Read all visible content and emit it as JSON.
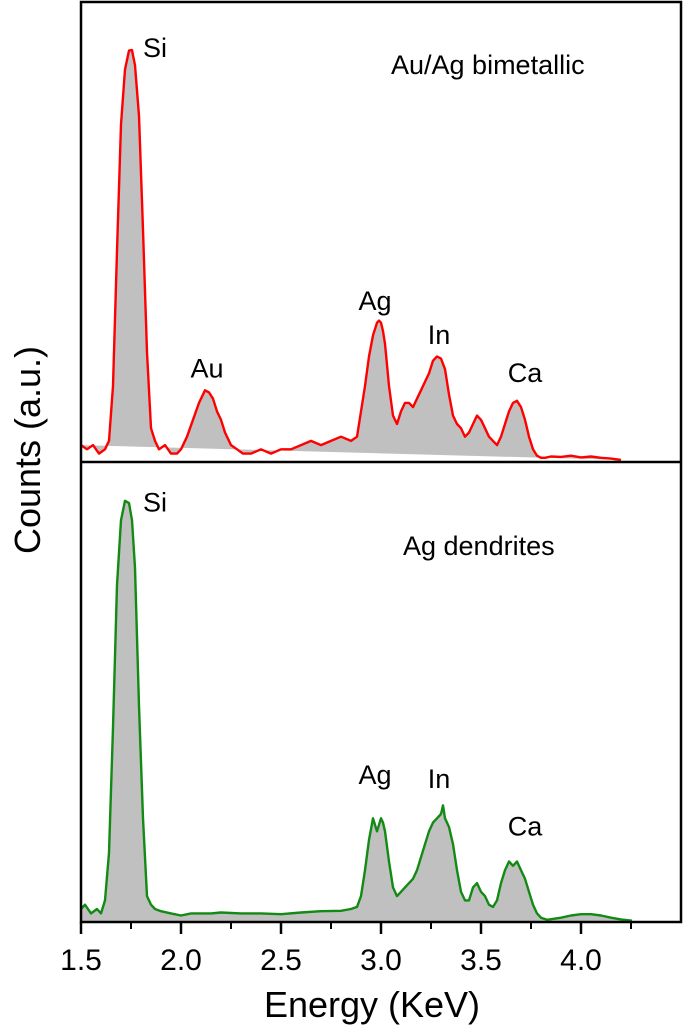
{
  "chart_data": {
    "type": "area",
    "title": "",
    "xlabel": "Energy (KeV)",
    "ylabel": "Counts (a.u.)",
    "xlim": [
      1.5,
      4.255
    ],
    "x_ticks": [
      "1.5",
      "2.0",
      "2.5",
      "3.0",
      "3.5",
      "4.0"
    ],
    "x_tick_values": [
      1.5,
      2.0,
      2.5,
      3.0,
      3.5,
      4.0
    ],
    "x_minor_ticks": [
      1.75,
      2.25,
      2.75,
      3.25,
      3.75,
      4.25
    ],
    "grid": false,
    "legend": "none",
    "fill_color": "#c0c0c0",
    "panels": [
      {
        "name": "Au/Ag bimetallic",
        "line_color": "#ff0000",
        "ylim": [
          0,
          100
        ],
        "peak_labels": [
          {
            "text": "Si",
            "x": 1.87,
            "y": 96
          },
          {
            "text": "Au",
            "x": 2.13,
            "y": 20
          },
          {
            "text": "Ag",
            "x": 2.97,
            "y": 36
          },
          {
            "text": "In",
            "x": 3.29,
            "y": 28
          },
          {
            "text": "Ca",
            "x": 3.72,
            "y": 19
          }
        ],
        "series": {
          "x": [
            1.5,
            1.53,
            1.56,
            1.59,
            1.62,
            1.64,
            1.66,
            1.68,
            1.7,
            1.72,
            1.74,
            1.755,
            1.77,
            1.79,
            1.81,
            1.83,
            1.85,
            1.87,
            1.89,
            1.92,
            1.95,
            1.98,
            2.0,
            2.03,
            2.06,
            2.09,
            2.12,
            2.14,
            2.16,
            2.18,
            2.2,
            2.22,
            2.25,
            2.28,
            2.31,
            2.35,
            2.4,
            2.45,
            2.5,
            2.55,
            2.6,
            2.65,
            2.7,
            2.75,
            2.8,
            2.85,
            2.88,
            2.9,
            2.92,
            2.94,
            2.96,
            2.98,
            2.99,
            3.0,
            3.01,
            3.02,
            3.04,
            3.06,
            3.08,
            3.1,
            3.12,
            3.14,
            3.16,
            3.18,
            3.2,
            3.22,
            3.24,
            3.26,
            3.28,
            3.3,
            3.32,
            3.34,
            3.36,
            3.38,
            3.4,
            3.42,
            3.44,
            3.46,
            3.48,
            3.5,
            3.52,
            3.54,
            3.56,
            3.58,
            3.6,
            3.62,
            3.64,
            3.66,
            3.68,
            3.7,
            3.72,
            3.74,
            3.76,
            3.78,
            3.8,
            3.82,
            3.85,
            3.9,
            3.95,
            4.0,
            4.05,
            4.1,
            4.15,
            4.2,
            4.255
          ],
          "values": [
            4,
            3,
            4,
            2,
            3,
            5,
            18,
            50,
            80,
            93,
            97.5,
            97.6,
            94,
            82,
            55,
            26,
            8,
            5,
            3,
            4,
            2,
            2,
            3,
            6,
            10,
            14,
            17,
            16.5,
            15,
            12,
            10,
            7,
            4,
            3,
            2,
            2,
            3,
            2,
            3,
            3,
            4,
            5,
            4,
            5,
            6,
            5,
            6,
            12,
            18,
            25,
            30,
            33,
            33.5,
            33,
            31,
            28,
            18,
            11,
            9,
            12,
            14,
            14,
            13,
            15,
            17,
            19,
            21,
            24,
            25,
            24.5,
            22,
            16,
            11,
            9,
            8,
            6,
            7,
            9,
            11,
            10,
            8,
            6,
            5,
            4,
            6,
            9,
            12,
            14,
            14.5,
            13,
            10,
            6,
            3,
            1.5,
            1,
            1,
            1.3,
            1.2,
            1.5,
            1.1,
            1.3,
            1,
            0.8,
            0.5
          ]
        }
      },
      {
        "name": "Ag dendrites",
        "line_color": "#138a13",
        "ylim": [
          0,
          100
        ],
        "peak_labels": [
          {
            "text": "Si",
            "x": 1.87,
            "y": 95
          },
          {
            "text": "Ag",
            "x": 2.97,
            "y": 32
          },
          {
            "text": "In",
            "x": 3.29,
            "y": 31
          },
          {
            "text": "Ca",
            "x": 3.72,
            "y": 20
          }
        ],
        "series": {
          "x": [
            1.5,
            1.52,
            1.55,
            1.58,
            1.6,
            1.62,
            1.64,
            1.66,
            1.68,
            1.7,
            1.72,
            1.74,
            1.755,
            1.77,
            1.79,
            1.81,
            1.83,
            1.85,
            1.87,
            1.9,
            1.95,
            2.0,
            2.05,
            2.1,
            2.15,
            2.2,
            2.3,
            2.4,
            2.5,
            2.6,
            2.7,
            2.8,
            2.85,
            2.88,
            2.9,
            2.92,
            2.94,
            2.96,
            2.98,
            3.0,
            3.01,
            3.02,
            3.04,
            3.06,
            3.08,
            3.1,
            3.12,
            3.14,
            3.16,
            3.18,
            3.2,
            3.22,
            3.24,
            3.26,
            3.28,
            3.3,
            3.31,
            3.32,
            3.34,
            3.36,
            3.38,
            3.4,
            3.42,
            3.44,
            3.46,
            3.48,
            3.5,
            3.52,
            3.54,
            3.56,
            3.58,
            3.6,
            3.62,
            3.64,
            3.66,
            3.68,
            3.7,
            3.72,
            3.74,
            3.76,
            3.78,
            3.8,
            3.83,
            3.9,
            3.95,
            4.0,
            4.05,
            4.1,
            4.15,
            4.2,
            4.255
          ],
          "values": [
            3,
            4,
            2,
            3,
            2,
            5,
            16,
            45,
            78,
            93,
            97.5,
            97,
            93,
            82,
            50,
            24,
            6,
            4,
            3,
            2.5,
            2,
            1.5,
            2,
            2,
            2,
            2.2,
            2,
            2,
            1.8,
            2.2,
            2.5,
            2.6,
            3,
            3.5,
            6,
            12,
            19,
            24,
            21,
            24,
            23,
            21,
            14,
            8,
            6,
            7,
            8,
            9,
            10,
            12,
            15,
            18,
            21,
            23,
            24,
            25,
            27,
            24,
            22,
            18,
            12,
            7,
            5,
            5,
            8,
            9,
            7,
            6,
            4,
            3.5,
            5,
            9,
            12,
            14,
            13,
            14,
            12,
            10,
            7,
            4,
            2,
            1,
            0.5,
            1,
            1.5,
            1.8,
            1.8,
            1.5,
            1,
            0.6,
            0.3
          ]
        }
      }
    ]
  }
}
